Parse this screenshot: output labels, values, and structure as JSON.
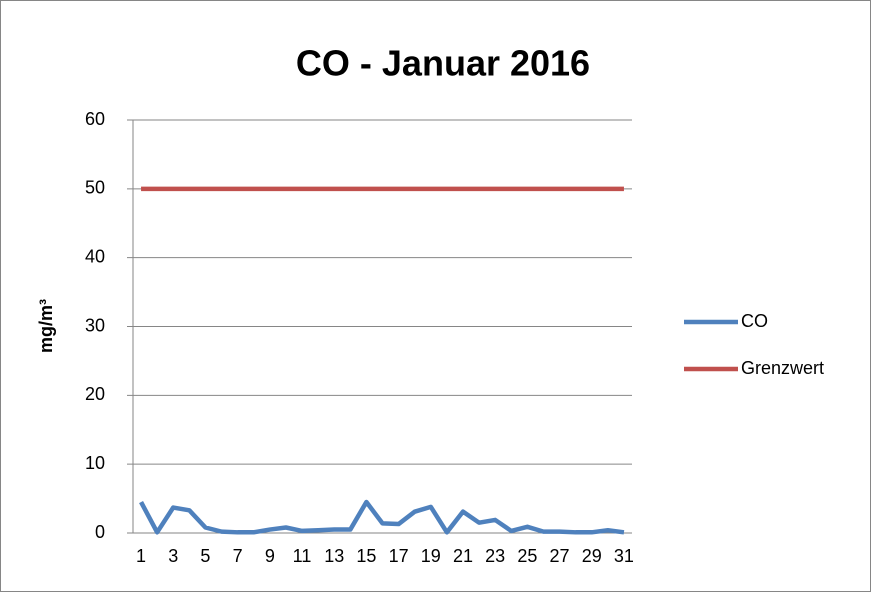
{
  "chart_data": {
    "type": "line",
    "title": "CO - Januar 2016",
    "y_label": "mg/m³",
    "categories": [
      1,
      null,
      3,
      null,
      5,
      null,
      7,
      null,
      9,
      null,
      11,
      null,
      13,
      null,
      15,
      null,
      17,
      null,
      19,
      null,
      21,
      null,
      23,
      null,
      25,
      null,
      27,
      null,
      29,
      null,
      31
    ],
    "series": [
      {
        "name": "CO",
        "color": "#4f81bd",
        "values": [
          4.5,
          0.1,
          3.7,
          3.3,
          0.8,
          0.2,
          0.1,
          0.1,
          0.5,
          0.8,
          0.3,
          0.4,
          0.5,
          0.5,
          4.5,
          1.4,
          1.3,
          3.1,
          3.8,
          0.1,
          3.1,
          1.5,
          1.9,
          0.3,
          0.9,
          0.2,
          0.2,
          0.1,
          0.1,
          0.4,
          0.1
        ]
      },
      {
        "name": "Grenzwert",
        "color": "#c0504d",
        "values": [
          50,
          50,
          50,
          50,
          50,
          50,
          50,
          50,
          50,
          50,
          50,
          50,
          50,
          50,
          50,
          50,
          50,
          50,
          50,
          50,
          50,
          50,
          50,
          50,
          50,
          50,
          50,
          50,
          50,
          50,
          50
        ]
      }
    ],
    "ylim": [
      0,
      60
    ],
    "yticks": [
      0,
      10,
      20,
      30,
      40,
      50,
      60
    ],
    "grid": true,
    "legend": "right"
  }
}
